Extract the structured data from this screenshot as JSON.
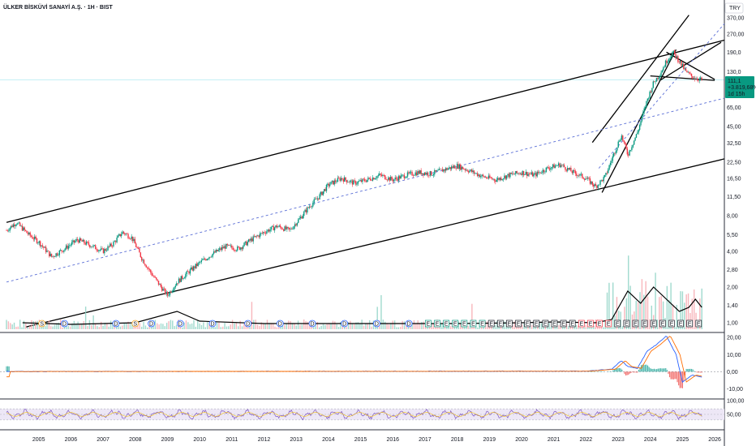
{
  "header": {
    "title": "ÜLKER BİSKÜVİ SANAYİ A.Ş. · 1H · BIST",
    "currency": "TRY"
  },
  "current": {
    "price": "111,1",
    "change": "+3.819,68%",
    "countdown": "1d 15h"
  },
  "colors": {
    "up": "#089981",
    "down": "#f23645",
    "line": "#000000",
    "dashed": "#5b6fd6",
    "macd": "#2962ff",
    "signal": "#ff6d00",
    "rsi": "#7e57c2",
    "rsi_band": "#ede7f6",
    "hline": "#b2ebf2"
  },
  "chart_data": [
    {
      "type": "line",
      "title": "",
      "scale": "log",
      "ylim": [
        1.0,
        370.0
      ],
      "x_years": [
        "2005",
        "2006",
        "2007",
        "2008",
        "2009",
        "2010",
        "2011",
        "2012",
        "2013",
        "2014",
        "2015",
        "2016",
        "2017",
        "2018",
        "2019",
        "2020",
        "2021",
        "2022",
        "2023",
        "2024",
        "2025",
        "2026"
      ],
      "y_ticks": [
        "370,00",
        "270,00",
        "190,0",
        "130,0",
        "65,00",
        "45,00",
        "32,50",
        "22,50",
        "16,50",
        "11,50",
        "8,00",
        "5,50",
        "4,00",
        "2,80",
        "2,00",
        "1,40",
        "1,00"
      ],
      "series": [
        {
          "x": [
            2004.0,
            2004.3,
            2004.7,
            2005.0,
            2005.4,
            2005.8,
            2006.2,
            2006.6,
            2007.0,
            2007.3,
            2007.6,
            2007.9,
            2008.2,
            2008.5,
            2008.8,
            2009.0,
            2009.3,
            2009.6,
            2010.0,
            2010.4,
            2010.8,
            2011.2,
            2011.6,
            2012.0,
            2012.4,
            2012.8,
            2013.1,
            2013.4,
            2013.7,
            2014.0,
            2014.4,
            2014.8,
            2015.2,
            2015.6,
            2016.0,
            2016.4,
            2016.8,
            2017.2,
            2017.6,
            2018.0,
            2018.4,
            2018.8,
            2019.2,
            2019.6,
            2020.0,
            2020.4,
            2020.8,
            2021.2,
            2021.6,
            2022.0,
            2022.3,
            2022.6,
            2022.9,
            2023.1,
            2023.3,
            2023.6,
            2023.9,
            2024.1,
            2024.3,
            2024.5,
            2024.7,
            2024.9,
            2025.1,
            2025.3,
            2025.6
          ],
          "values": [
            6.0,
            7.0,
            5.5,
            4.8,
            3.6,
            4.2,
            5.0,
            4.5,
            4.0,
            4.6,
            5.8,
            5.2,
            3.5,
            2.6,
            2.0,
            1.7,
            2.2,
            2.6,
            3.2,
            3.8,
            4.4,
            4.2,
            5.0,
            5.8,
            6.5,
            6.0,
            7.5,
            9.5,
            11.5,
            14.5,
            16.5,
            15.0,
            16.0,
            17.5,
            16.0,
            17.5,
            18.5,
            18.0,
            19.5,
            21.0,
            19.0,
            17.0,
            16.0,
            17.5,
            18.5,
            17.5,
            20.0,
            21.5,
            18.5,
            16.5,
            14.0,
            17.0,
            28.0,
            38.0,
            26.0,
            40.0,
            75.0,
            105.0,
            125.0,
            160.0,
            190.0,
            160.0,
            130.0,
            118.0,
            111.1
          ]
        }
      ],
      "annotations": [
        "D",
        "S",
        "E"
      ]
    },
    {
      "type": "line",
      "title": "",
      "ylim": [
        -15,
        22
      ],
      "y_ticks": [
        "20,00",
        "10,00",
        "0,00",
        "-10,00"
      ],
      "series": [
        {
          "name": "",
          "x": [
            2004.0,
            2022.0,
            2022.8,
            2023.1,
            2023.3,
            2023.6,
            2023.9,
            2024.2,
            2024.5,
            2024.8,
            2025.0,
            2025.3,
            2025.6
          ],
          "values": [
            0.1,
            0.3,
            1.5,
            6.5,
            3.0,
            2.0,
            12.0,
            16.0,
            21.0,
            10.0,
            -6.0,
            -2.0,
            -3.0
          ]
        }
      ]
    },
    {
      "type": "line",
      "title": "",
      "ylim": [
        0,
        100
      ],
      "y_ticks": [
        "100,00",
        "50,00"
      ],
      "series": [
        {
          "name": "",
          "x": [
            2004.0,
            2025.6
          ],
          "values": [
            50,
            50
          ]
        }
      ]
    }
  ]
}
